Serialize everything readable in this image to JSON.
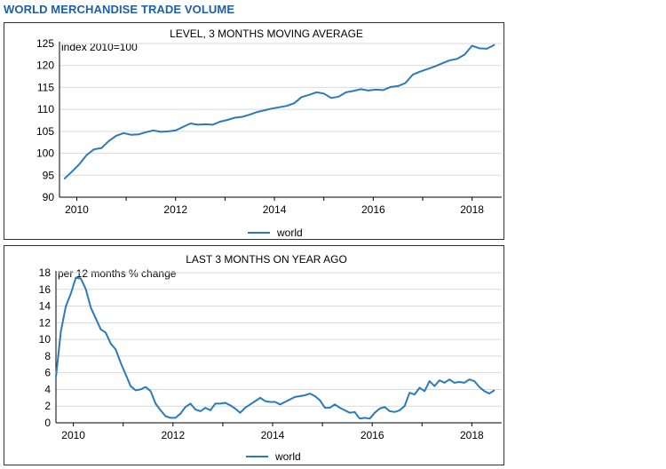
{
  "page": {
    "title": "WORLD MERCHANDISE TRADE VOLUME"
  },
  "style": {
    "title_color": "#1f5fa6",
    "line_color": "#2b7bb9",
    "grid_color": "#d9d9d9"
  },
  "chart_data": [
    {
      "type": "line",
      "title": "LEVEL, 3 MONTHS MOVING AVERAGE",
      "annotation": "index 2010=100",
      "x_ticks": [
        "2010",
        "2012",
        "2014",
        "2016",
        "2018"
      ],
      "xlim": [
        2009.65,
        2018.6
      ],
      "ylim": [
        90,
        125
      ],
      "y_ticks": [
        90,
        95,
        100,
        105,
        110,
        115,
        120,
        125
      ],
      "grid": "horizontal",
      "legend": "bottom",
      "series": [
        {
          "name": "world",
          "x": [
            2009.75,
            2009.9,
            2010.05,
            2010.2,
            2010.35,
            2010.5,
            2010.65,
            2010.8,
            2010.95,
            2011.1,
            2011.25,
            2011.4,
            2011.55,
            2011.7,
            2011.85,
            2012.0,
            2012.15,
            2012.3,
            2012.45,
            2012.6,
            2012.75,
            2012.9,
            2013.05,
            2013.2,
            2013.35,
            2013.5,
            2013.65,
            2013.8,
            2013.95,
            2014.1,
            2014.25,
            2014.4,
            2014.55,
            2014.7,
            2014.85,
            2015.0,
            2015.15,
            2015.3,
            2015.45,
            2015.6,
            2015.75,
            2015.9,
            2016.05,
            2016.2,
            2016.35,
            2016.5,
            2016.65,
            2016.8,
            2016.95,
            2017.1,
            2017.25,
            2017.4,
            2017.55,
            2017.7,
            2017.85,
            2018.0,
            2018.15,
            2018.3,
            2018.45
          ],
          "values": [
            94.2,
            95.8,
            97.5,
            99.6,
            100.9,
            101.2,
            102.8,
            104.0,
            104.6,
            104.2,
            104.3,
            104.8,
            105.2,
            104.9,
            105.0,
            105.2,
            106.0,
            106.8,
            106.5,
            106.6,
            106.5,
            107.2,
            107.6,
            108.1,
            108.3,
            108.8,
            109.4,
            109.8,
            110.2,
            110.5,
            110.8,
            111.4,
            112.8,
            113.3,
            113.9,
            113.6,
            112.6,
            112.9,
            113.9,
            114.2,
            114.6,
            114.3,
            114.5,
            114.4,
            115.1,
            115.3,
            116.0,
            117.9,
            118.6,
            119.2,
            119.8,
            120.5,
            121.2,
            121.5,
            122.5,
            124.5,
            123.9,
            123.8,
            124.7
          ]
        }
      ]
    },
    {
      "type": "line",
      "title": "LAST 3 MONTHS ON YEAR AGO",
      "annotation": "per 12 months % change",
      "x_ticks": [
        "2010",
        "2012",
        "2014",
        "2016",
        "2018"
      ],
      "xlim": [
        2009.65,
        2018.6
      ],
      "ylim": [
        0,
        18
      ],
      "y_ticks": [
        0,
        2,
        4,
        6,
        8,
        10,
        12,
        14,
        16,
        18
      ],
      "grid": "horizontal",
      "legend": "bottom",
      "series": [
        {
          "name": "world",
          "x": [
            2009.65,
            2009.75,
            2009.85,
            2009.95,
            2010.05,
            2010.15,
            2010.25,
            2010.35,
            2010.45,
            2010.55,
            2010.65,
            2010.75,
            2010.85,
            2010.95,
            2011.05,
            2011.15,
            2011.25,
            2011.35,
            2011.45,
            2011.55,
            2011.65,
            2011.75,
            2011.85,
            2011.95,
            2012.05,
            2012.15,
            2012.25,
            2012.35,
            2012.45,
            2012.55,
            2012.65,
            2012.75,
            2012.85,
            2012.95,
            2013.05,
            2013.15,
            2013.25,
            2013.35,
            2013.45,
            2013.55,
            2013.65,
            2013.75,
            2013.85,
            2013.95,
            2014.05,
            2014.15,
            2014.25,
            2014.35,
            2014.45,
            2014.55,
            2014.65,
            2014.75,
            2014.85,
            2014.95,
            2015.05,
            2015.15,
            2015.25,
            2015.35,
            2015.45,
            2015.55,
            2015.65,
            2015.75,
            2015.85,
            2015.95,
            2016.05,
            2016.15,
            2016.25,
            2016.35,
            2016.45,
            2016.55,
            2016.65,
            2016.75,
            2016.85,
            2016.95,
            2017.05,
            2017.15,
            2017.25,
            2017.35,
            2017.45,
            2017.55,
            2017.65,
            2017.75,
            2017.85,
            2017.95,
            2018.05,
            2018.15,
            2018.25,
            2018.35,
            2018.45
          ],
          "values": [
            5.5,
            11.0,
            14.0,
            15.5,
            17.4,
            17.3,
            16.0,
            13.8,
            12.5,
            11.2,
            10.8,
            9.5,
            8.8,
            7.2,
            5.8,
            4.4,
            3.9,
            4.0,
            4.3,
            3.8,
            2.3,
            1.5,
            0.8,
            0.6,
            0.6,
            1.1,
            1.9,
            2.3,
            1.6,
            1.4,
            1.8,
            1.5,
            2.3,
            2.3,
            2.4,
            2.1,
            1.7,
            1.2,
            1.8,
            2.2,
            2.6,
            3.0,
            2.6,
            2.5,
            2.5,
            2.2,
            2.5,
            2.8,
            3.1,
            3.2,
            3.3,
            3.5,
            3.2,
            2.7,
            1.8,
            1.8,
            2.2,
            1.8,
            1.5,
            1.2,
            1.3,
            0.5,
            0.6,
            0.5,
            1.2,
            1.7,
            1.9,
            1.4,
            1.3,
            1.5,
            2.0,
            3.6,
            3.4,
            4.2,
            3.8,
            5.0,
            4.4,
            5.1,
            4.8,
            5.2,
            4.8,
            4.9,
            4.8,
            5.2,
            5.0,
            4.3,
            3.8,
            3.5,
            3.9
          ]
        }
      ]
    }
  ]
}
